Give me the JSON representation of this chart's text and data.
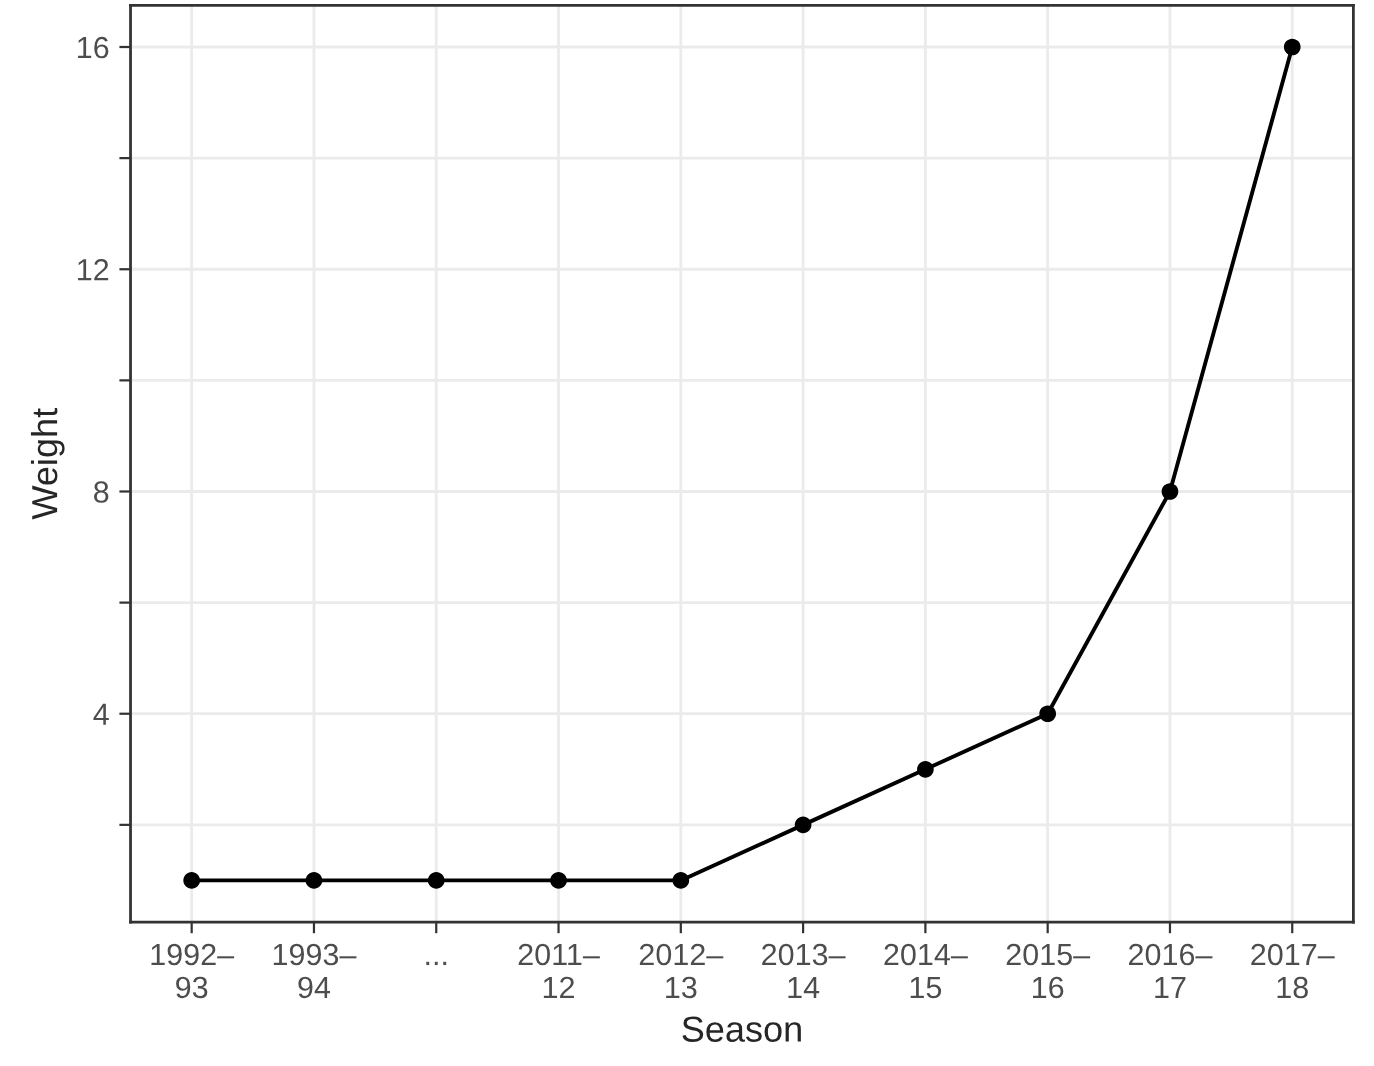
{
  "chart_data": {
    "type": "line",
    "xlabel": "Season",
    "ylabel": "Weight",
    "categories": [
      "1992–\n93",
      "1993–\n94",
      "...",
      "2011–\n12",
      "2012–\n13",
      "2013–\n14",
      "2014–\n15",
      "2015–\n16",
      "2016–\n17",
      "2017–\n18"
    ],
    "series": [
      {
        "color": "#000000",
        "values": [
          1,
          1,
          1,
          1,
          1,
          2,
          3,
          4,
          8,
          16
        ]
      }
    ],
    "ylim": [
      0.25,
      16.75
    ],
    "yticks": [
      {
        "value": 2,
        "label": null
      },
      4,
      {
        "value": 6,
        "label": null
      },
      8,
      {
        "value": 10,
        "label": null
      },
      12,
      {
        "value": 14,
        "label": null
      },
      16
    ],
    "grid": true,
    "marker": "circle",
    "line_style": "solid"
  }
}
